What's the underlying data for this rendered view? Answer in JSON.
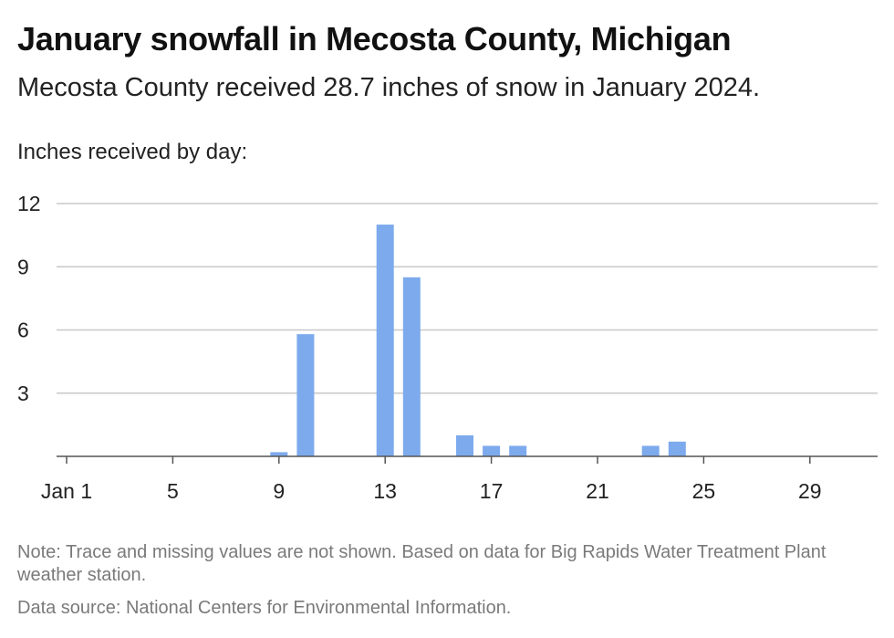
{
  "header": {
    "title": "January snowfall in Mecosta County, Michigan",
    "subtitle": "Mecosta County received 28.7 inches of snow in January 2024."
  },
  "footer": {
    "note": "Note: Trace and missing values are not shown. Based on data for Big Rapids Water Treatment Plant weather station.",
    "source": "Data source: National Centers for Environmental Information."
  },
  "colors": {
    "bar": "#7daaed",
    "grid": "#c8c8c8",
    "axis": "#555555"
  },
  "chart_data": {
    "type": "bar",
    "title": "January snowfall in Mecosta County, Michigan",
    "subtitle": "Mecosta County received 28.7 inches of snow in January 2024.",
    "ylabel": "Inches received by day:",
    "xlabel": "",
    "ylim": [
      0,
      12
    ],
    "yticks": [
      3,
      6,
      9,
      12
    ],
    "xlim": [
      0.5,
      32
    ],
    "xticks": [
      {
        "day": 1,
        "label": "Jan 1"
      },
      {
        "day": 5,
        "label": "5"
      },
      {
        "day": 9,
        "label": "9"
      },
      {
        "day": 13,
        "label": "13"
      },
      {
        "day": 17,
        "label": "17"
      },
      {
        "day": 21,
        "label": "21"
      },
      {
        "day": 25,
        "label": "25"
      },
      {
        "day": 29,
        "label": "29"
      }
    ],
    "grid": true,
    "days": [
      9,
      10,
      13,
      14,
      16,
      17,
      18,
      23,
      24
    ],
    "values": [
      0.2,
      5.8,
      11.0,
      8.5,
      1.0,
      0.5,
      0.5,
      0.5,
      0.7
    ]
  }
}
